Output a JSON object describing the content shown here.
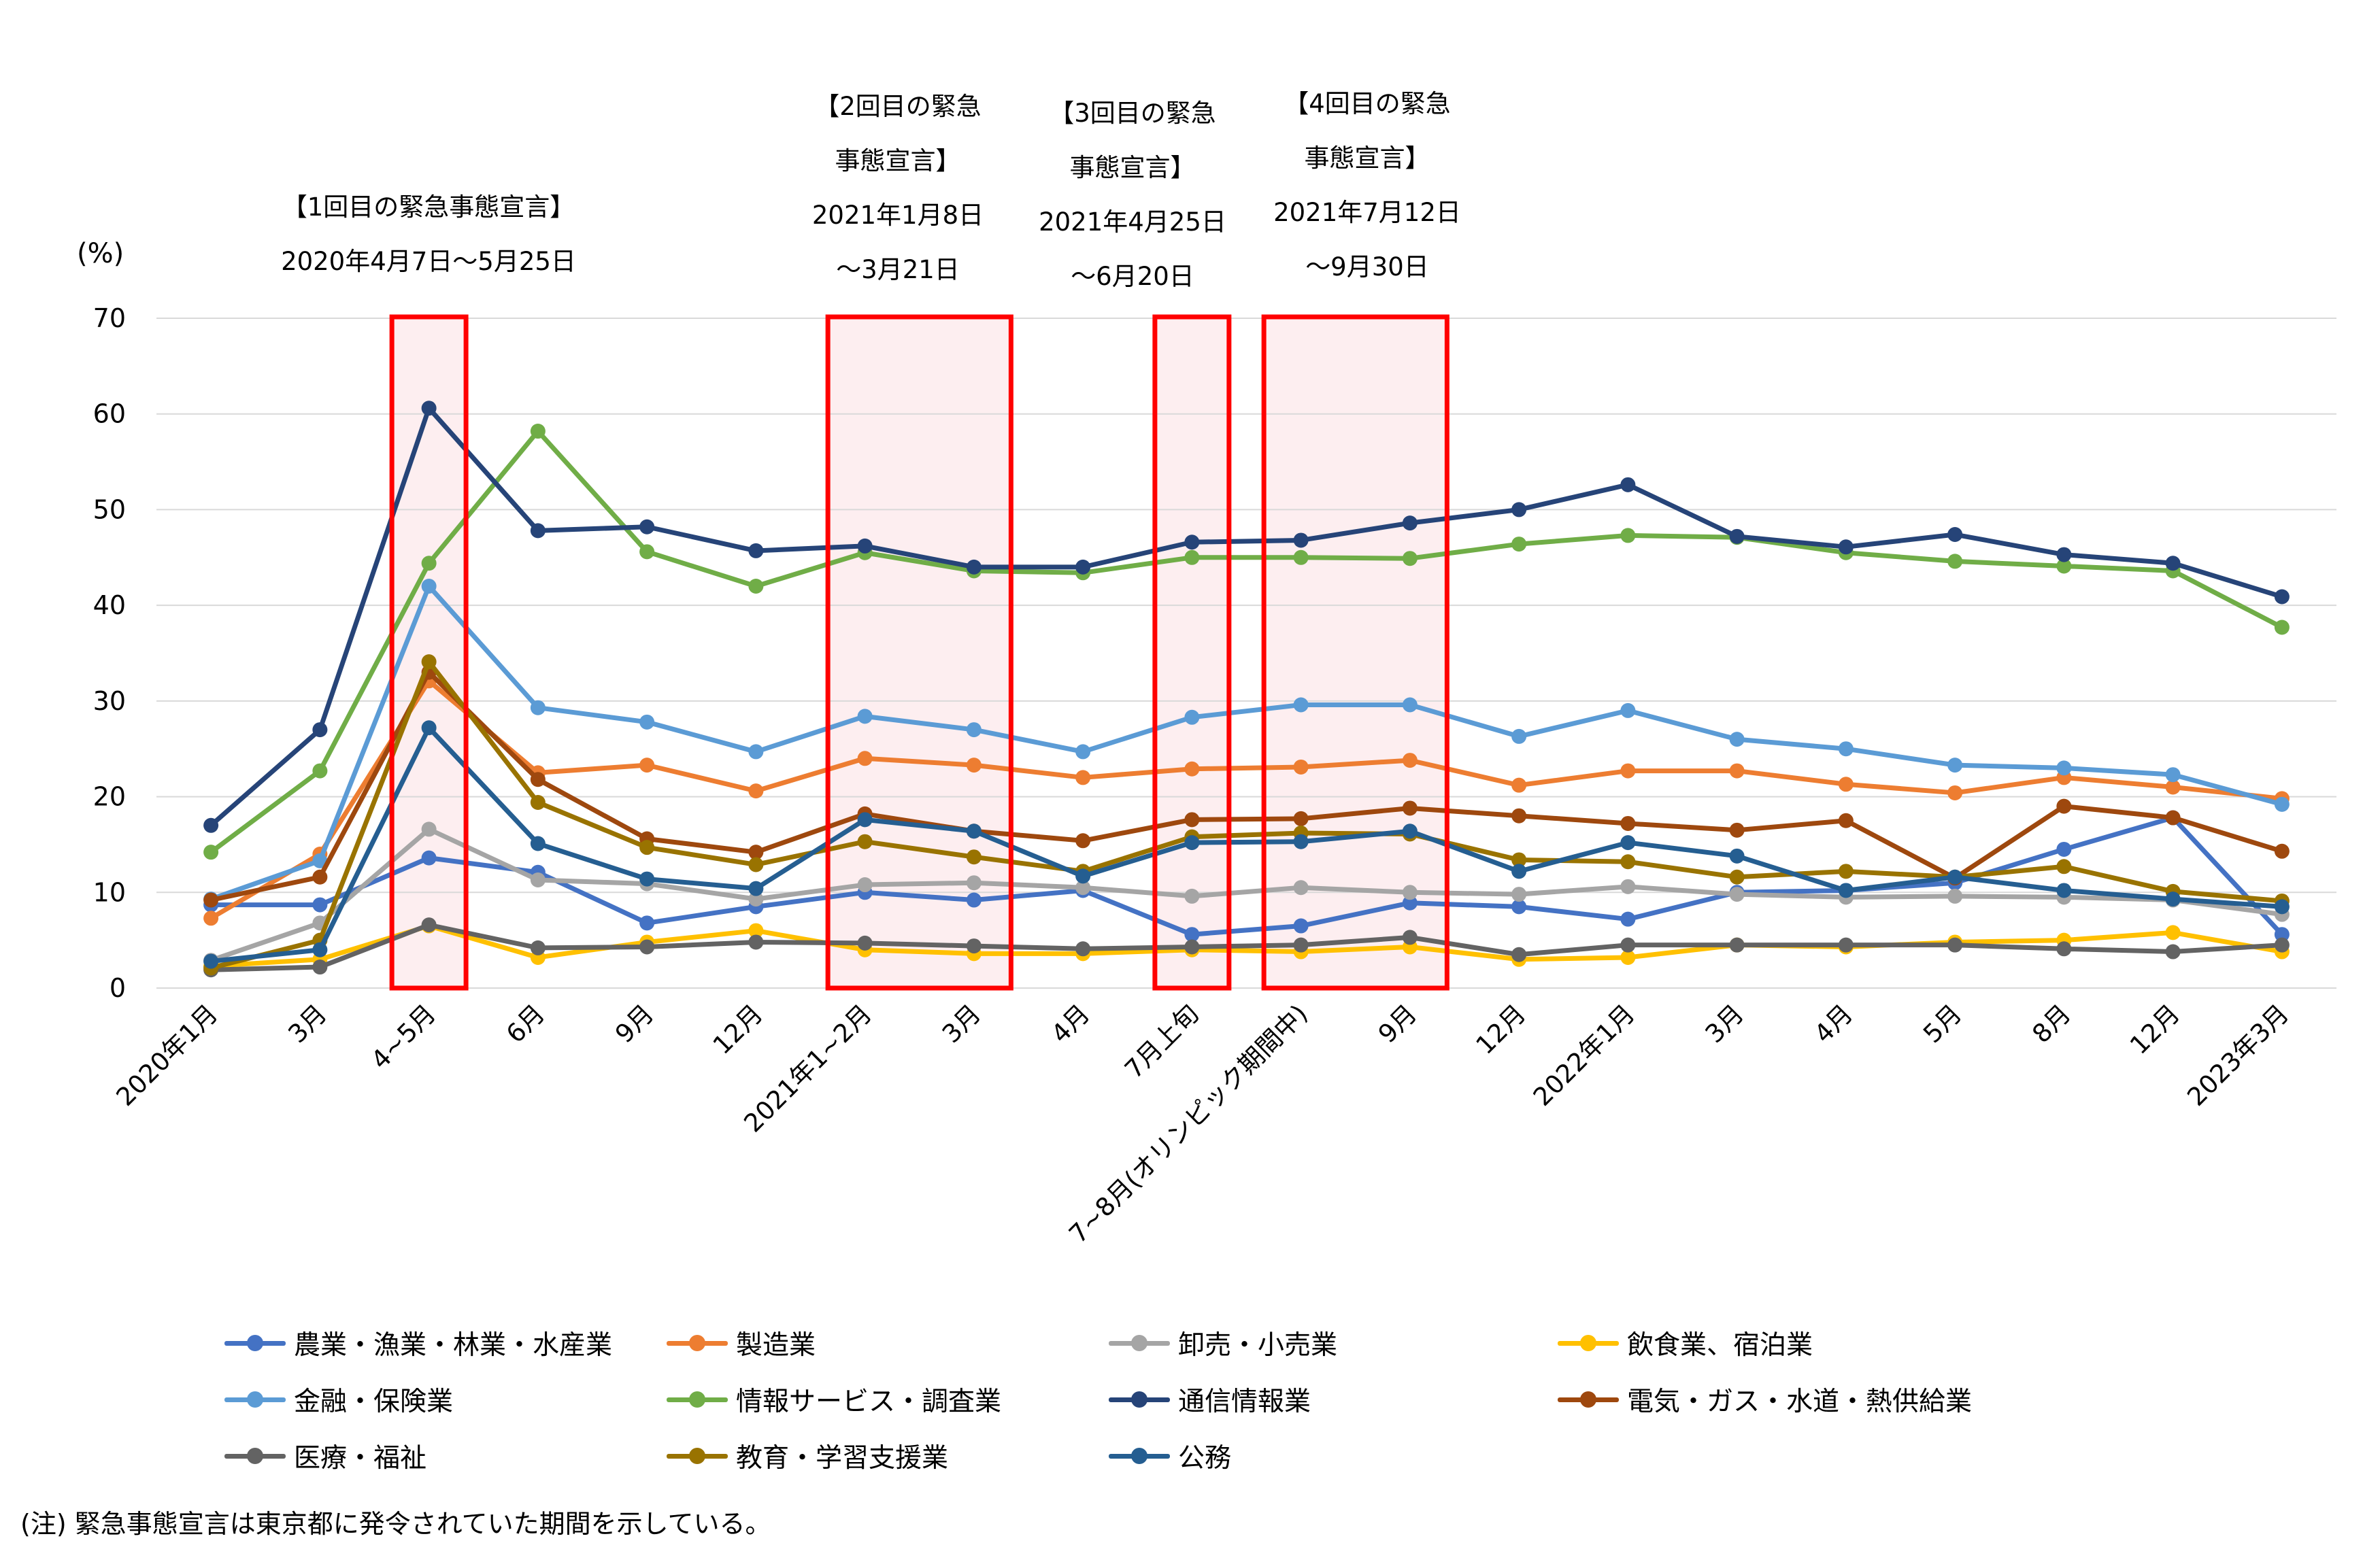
{
  "chart_data": {
    "type": "line",
    "title": "",
    "ylabel": "(%)",
    "xlabel": "",
    "ylim": [
      0,
      70
    ],
    "yticks": [
      "0",
      "10",
      "20",
      "30",
      "40",
      "50",
      "60",
      "70"
    ],
    "grid": true,
    "legend_position": "bottom",
    "categories": [
      "2020年1月",
      "3月",
      "4~5月",
      "6月",
      "9月",
      "12月",
      "2021年1~2月",
      "3月",
      "4月",
      "7月上旬",
      "7~8月(オリンピック期間中)",
      "9月",
      "12月",
      "2022年1月",
      "3月",
      "4月",
      "5月",
      "8月",
      "12月",
      "2023年3月"
    ],
    "series": [
      {
        "name": "農業・漁業・林業・水産業",
        "color": "#4472c4",
        "values": [
          8.7,
          8.7,
          13.6,
          12.1,
          6.8,
          8.5,
          10.0,
          9.2,
          10.2,
          5.6,
          6.5,
          8.9,
          8.5,
          7.2,
          10.0,
          10.2,
          11.0,
          14.5,
          17.8,
          5.6
        ]
      },
      {
        "name": "製造業",
        "color": "#ed7d31",
        "values": [
          7.3,
          14.0,
          32.1,
          22.5,
          23.3,
          20.6,
          24.0,
          23.3,
          22.0,
          22.9,
          23.1,
          23.8,
          21.2,
          22.7,
          22.7,
          21.3,
          20.4,
          22.0,
          21.0,
          19.8
        ]
      },
      {
        "name": "卸売・小売業",
        "color": "#a5a5a5",
        "values": [
          2.9,
          6.8,
          16.6,
          11.3,
          10.9,
          9.3,
          10.8,
          11.0,
          10.5,
          9.6,
          10.5,
          10.0,
          9.8,
          10.6,
          9.8,
          9.5,
          9.6,
          9.5,
          9.2,
          7.7
        ]
      },
      {
        "name": "飲食業、宿泊業",
        "color": "#ffc000",
        "values": [
          2.3,
          3.0,
          6.5,
          3.2,
          4.8,
          6.0,
          4.0,
          3.6,
          3.6,
          4.0,
          3.8,
          4.3,
          3.0,
          3.2,
          4.5,
          4.3,
          4.8,
          5.0,
          5.8,
          3.8
        ]
      },
      {
        "name": "金融・保険業",
        "color": "#5b9bd5",
        "values": [
          9.3,
          13.3,
          42.0,
          29.3,
          27.8,
          24.7,
          28.4,
          27.0,
          24.7,
          28.3,
          29.6,
          29.6,
          26.3,
          29.0,
          26.0,
          25.0,
          23.3,
          23.0,
          22.3,
          19.2
        ]
      },
      {
        "name": "情報サービス・調査業",
        "color": "#70ad47",
        "values": [
          14.2,
          22.7,
          44.4,
          58.2,
          45.6,
          42.0,
          45.5,
          43.6,
          43.4,
          45.0,
          45.0,
          44.9,
          46.4,
          47.3,
          47.1,
          45.5,
          44.6,
          44.1,
          43.6,
          37.7
        ]
      },
      {
        "name": "通信情報業",
        "color": "#264478",
        "values": [
          17.0,
          27.0,
          60.6,
          47.8,
          48.2,
          45.7,
          46.2,
          44.0,
          44.0,
          46.6,
          46.8,
          48.6,
          50.0,
          52.6,
          47.2,
          46.1,
          47.4,
          45.3,
          44.4,
          40.9
        ]
      },
      {
        "name": "電気・ガス・水道・熱供給業",
        "color": "#9e480e",
        "values": [
          9.2,
          11.6,
          33.0,
          21.8,
          15.6,
          14.2,
          18.2,
          16.4,
          15.4,
          17.6,
          17.7,
          18.8,
          18.0,
          17.2,
          16.5,
          17.5,
          11.5,
          19.0,
          17.8,
          14.3
        ]
      },
      {
        "name": "医療・福祉",
        "color": "#636363",
        "values": [
          1.9,
          2.2,
          6.6,
          4.2,
          4.3,
          4.8,
          4.7,
          4.4,
          4.1,
          4.3,
          4.5,
          5.3,
          3.5,
          4.5,
          4.5,
          4.5,
          4.5,
          4.1,
          3.8,
          4.5
        ]
      },
      {
        "name": "教育・学習支援業",
        "color": "#997300",
        "values": [
          2.1,
          5.0,
          34.1,
          19.4,
          14.7,
          12.9,
          15.3,
          13.7,
          12.2,
          15.8,
          16.2,
          16.1,
          13.4,
          13.2,
          11.6,
          12.2,
          11.6,
          12.7,
          10.1,
          9.1
        ]
      },
      {
        "name": "公務",
        "color": "#255e91",
        "values": [
          2.8,
          4.0,
          27.2,
          15.1,
          11.4,
          10.4,
          17.6,
          16.4,
          11.7,
          15.2,
          15.3,
          16.4,
          12.2,
          15.2,
          13.8,
          10.2,
          11.6,
          10.2,
          9.3,
          8.5
        ]
      }
    ],
    "highlight_periods": [
      {
        "from": 2,
        "to": 2
      },
      {
        "from": 6,
        "to": 7
      },
      {
        "from": 9,
        "to": 9
      },
      {
        "from": 10,
        "to": 11
      }
    ]
  },
  "annotations": [
    {
      "lines": [
        "【1回目の緊急事態宣言】",
        "2020年4月7日～5月25日"
      ]
    },
    {
      "lines": [
        "【2回目の緊急",
        "事態宣言】",
        "2021年1月8日",
        "～3月21日"
      ]
    },
    {
      "lines": [
        "【3回目の緊急",
        "事態宣言】",
        "2021年4月25日",
        "～6月20日"
      ]
    },
    {
      "lines": [
        "【4回目の緊急",
        "事態宣言】",
        "2021年7月12日",
        "～9月30日"
      ]
    }
  ],
  "unit_label": "(%)",
  "note": "(注) 緊急事態宣言は東京都に発令されていた期間を示している。"
}
